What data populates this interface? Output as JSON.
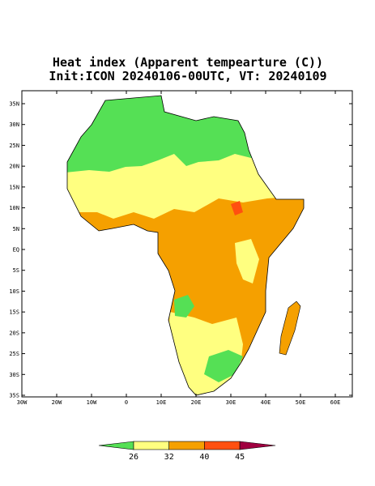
{
  "title": {
    "line1": "Heat index (Apparent tempearture (C))",
    "line2": "Init:ICON 20240106-00UTC, VT: 20240109"
  },
  "map": {
    "lat_labels": [
      "35N",
      "30N",
      "25N",
      "20N",
      "15N",
      "10N",
      "5N",
      "EQ",
      "5S",
      "10S",
      "15S",
      "20S",
      "25S",
      "30S",
      "35S"
    ],
    "lon_labels": [
      "30W",
      "20W",
      "10W",
      "0",
      "10E",
      "20E",
      "30E",
      "40E",
      "50E",
      "60E"
    ]
  },
  "colorbar": {
    "levels": [
      26,
      32,
      40,
      45
    ],
    "colors": [
      "#55e055",
      "#ffff80",
      "#f5a000",
      "#ff5010",
      "#a00040"
    ]
  }
}
